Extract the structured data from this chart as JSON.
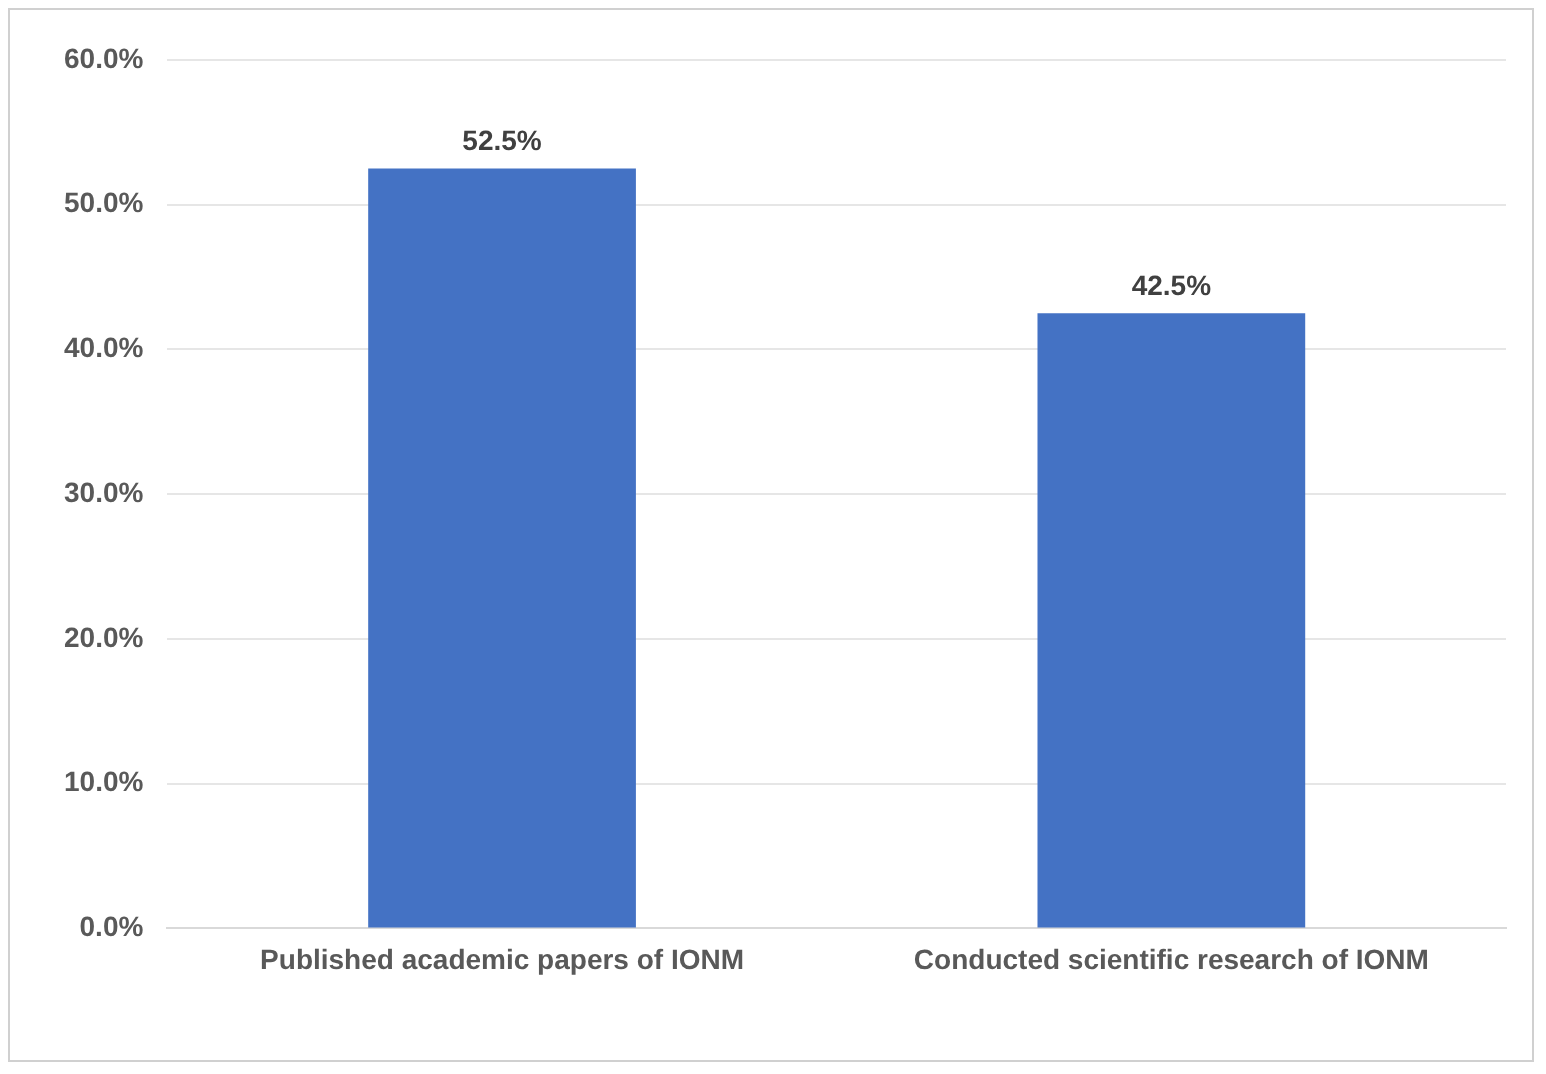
{
  "chart_data": {
    "type": "bar",
    "categories": [
      "Published academic papers of IONM",
      "Conducted scientific research of IONM"
    ],
    "values": [
      52.5,
      42.5
    ],
    "color": "#4472c4",
    "value_labels": [
      "52.5%",
      "42.5%"
    ],
    "ylim": [
      0,
      60
    ],
    "yticks": [
      {
        "value": 0,
        "label": "0.0%"
      },
      {
        "value": 10,
        "label": "10.0%"
      },
      {
        "value": 20,
        "label": "20.0%"
      },
      {
        "value": 30,
        "label": "30.0%"
      },
      {
        "value": 40,
        "label": "40.0%"
      },
      {
        "value": 50,
        "label": "50.0%"
      },
      {
        "value": 60,
        "label": "60.0%"
      }
    ],
    "grid": "y",
    "legend": false
  }
}
